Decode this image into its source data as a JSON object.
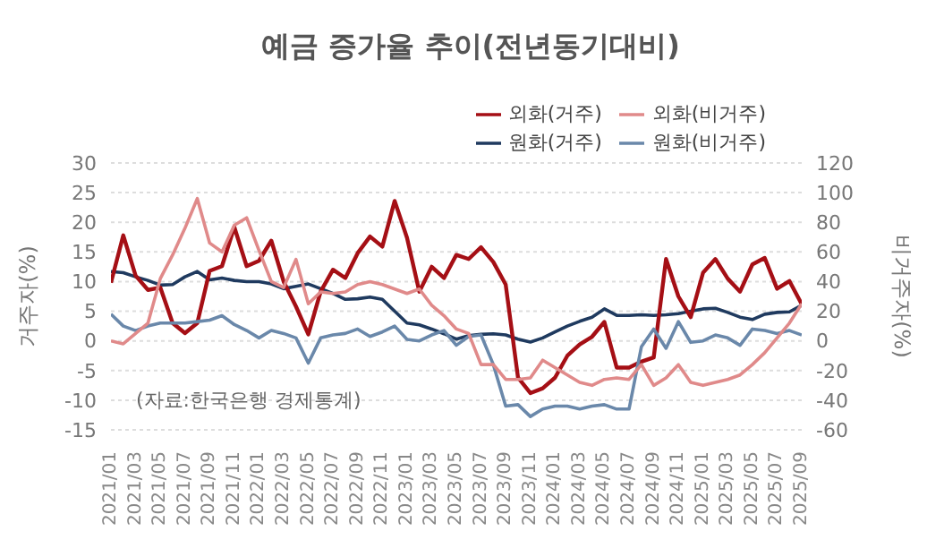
{
  "chart_data": {
    "type": "line",
    "title": "예금 증가율 추이(전년동기대비)",
    "ylabel": "거주자(%)",
    "y2label": "비거주자(%)",
    "annotations": [
      "(자료:한국은행 경제통계)"
    ],
    "categories": [
      "2021/01",
      null,
      "2021/03",
      null,
      "2021/05",
      null,
      "2021/07",
      null,
      "2021/09",
      null,
      "2021/11",
      null,
      "2022/01",
      null,
      "2022/03",
      null,
      "2022/05",
      null,
      "2022/07",
      null,
      "2022/09",
      null,
      "2022/11",
      null,
      "2023/01",
      null,
      "2023/03",
      null,
      "2023/05",
      null,
      "2023/07",
      null,
      "2023/09",
      null,
      "2023/11",
      null,
      "2024/01",
      null,
      "2024/03",
      null,
      "2024/05",
      null,
      "2024/07",
      null,
      "2024/09",
      null,
      "2024/11",
      null,
      "2025/01",
      null,
      "2025/03",
      null,
      "2025/05",
      null,
      "2025/07",
      null,
      "2025/09"
    ],
    "series": [
      {
        "name": "원화(거주)",
        "color": "#1f3a5f",
        "values": [
          11.7,
          11.5,
          10.8,
          10.2,
          9.4,
          9.5,
          10.8,
          11.7,
          10.3,
          10.6,
          10.2,
          10.0,
          10.0,
          9.6,
          8.8,
          9.2,
          9.6,
          8.8,
          8.0,
          7.0,
          7.1,
          7.4,
          7.0,
          5.0,
          3.0,
          2.7,
          2.0,
          1.2,
          0.3,
          0.9,
          1.1,
          1.2,
          1.0,
          0.3,
          -0.2,
          0.5,
          1.5,
          2.5,
          3.3,
          4.0,
          5.4,
          4.3,
          4.3,
          4.4,
          4.3,
          4.4,
          4.6,
          5.0,
          5.4,
          5.5,
          4.8,
          4.0,
          3.6,
          4.5,
          4.8,
          4.9,
          6.0
        ]
      },
      {
        "name": "외화(거주)",
        "color": "#a50f15",
        "values": [
          9.8,
          17.8,
          11.0,
          8.6,
          9.0,
          3.0,
          1.3,
          3.0,
          11.8,
          12.6,
          19.2,
          12.6,
          13.5,
          16.9,
          10.0,
          5.8,
          1.1,
          8.3,
          12.0,
          10.6,
          14.8,
          17.6,
          15.9,
          23.6,
          17.4,
          8.3,
          12.5,
          10.6,
          14.5,
          13.8,
          15.8,
          13.3,
          9.5,
          -6.2,
          -8.8,
          -8.0,
          -6.2,
          -2.5,
          -0.6,
          0.7,
          3.2,
          -4.5,
          -4.5,
          -3.5,
          -2.8,
          13.8,
          7.5,
          4.0,
          11.5,
          13.8,
          10.5,
          8.3,
          12.9,
          14.0,
          8.8,
          10.1,
          6.2
        ]
      },
      {
        "name": "원화(비거주)",
        "color": "#6a88aa",
        "axis": "y2",
        "values": [
          18,
          10,
          7,
          10,
          12,
          12,
          12,
          13,
          14,
          17,
          11,
          7,
          2,
          7,
          5,
          2,
          -15,
          2,
          4,
          5,
          8,
          3,
          6,
          10,
          1,
          0,
          4,
          7,
          -3,
          3,
          4,
          -16,
          -44,
          -43,
          -51,
          -46,
          -44,
          -44,
          -46,
          -44,
          -43,
          -46,
          -46,
          -4,
          8,
          -5,
          13,
          -1,
          0,
          4,
          2,
          -3,
          8,
          7,
          5,
          7,
          4
        ]
      },
      {
        "name": "외화(비거주)",
        "color": "#e08a8a",
        "axis": "y2",
        "values": [
          0,
          -2,
          5,
          12,
          42,
          58,
          76,
          96,
          66,
          60,
          78,
          83,
          61,
          40,
          36,
          55,
          25,
          33,
          32,
          33,
          38,
          40,
          38,
          35,
          32,
          35,
          24,
          17,
          8,
          5,
          -16,
          -16,
          -26,
          -26,
          -25,
          -13,
          -18,
          -23,
          -28,
          -30,
          -26,
          -25,
          -26,
          -16,
          -30,
          -25,
          -16,
          -28,
          -30,
          -28,
          -26,
          -23,
          -16,
          -8,
          2,
          12,
          25
        ]
      }
    ],
    "ylim": [
      -15,
      30
    ],
    "yticks": [
      -15,
      -10,
      -5,
      0,
      5,
      10,
      15,
      20,
      25,
      30
    ],
    "y2lim": [
      -60,
      120
    ],
    "y2ticks": [
      -60,
      -40,
      -20,
      0,
      20,
      40,
      60,
      80,
      100,
      120
    ],
    "grid": "y",
    "legend": "top right",
    "marker": "none",
    "line_style": "solid"
  }
}
